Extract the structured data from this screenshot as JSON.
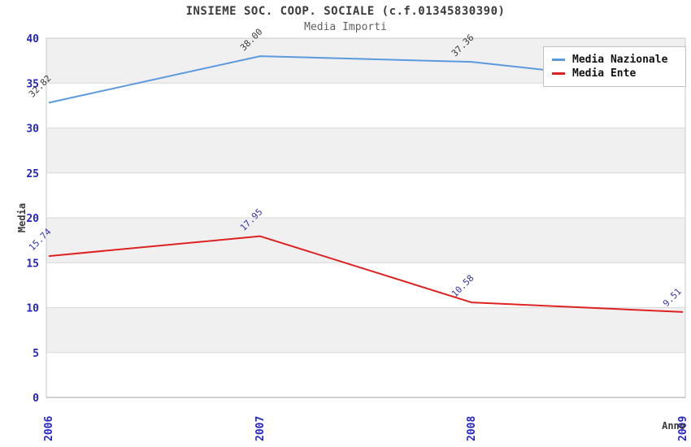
{
  "header": {
    "title": "INSIEME SOC. COOP. SOCIALE (c.f.01345830390)",
    "subtitle": "Media Importi"
  },
  "legend": {
    "items": [
      {
        "label": "Media Nazionale",
        "color": "#5a9add"
      },
      {
        "label": "Media Ente",
        "color": "#dd2222"
      }
    ]
  },
  "chart_data": {
    "type": "line",
    "title": "INSIEME SOC. COOP. SOCIALE (c.f.01345830390)",
    "subtitle": "Media Importi",
    "xlabel": "Anno",
    "ylabel": "Media",
    "x": [
      "2006",
      "2007",
      "2008",
      "2009"
    ],
    "series": [
      {
        "name": "Media Nazionale",
        "color": "#5a9add",
        "label_color": "#3a3a3a",
        "values": [
          32.82,
          38.0,
          37.36,
          34.79
        ]
      },
      {
        "name": "Media Ente",
        "color": "#dd2222",
        "label_color": "#3333aa",
        "values": [
          15.74,
          17.95,
          10.58,
          9.51
        ]
      }
    ],
    "ylim": [
      0,
      40
    ],
    "ytick_step": 5,
    "grid": "horizontal-bands",
    "legend_position": "top-right"
  },
  "style": {
    "band_gray": "#f0f0f0",
    "band_white": "#ffffff",
    "band_line": "#d9d9d9",
    "plot_border": "#c8c8c8",
    "axis_line": "#a0a0a0",
    "tick_color": "#2525c4",
    "axis_label_color": "#3a3a3a"
  }
}
